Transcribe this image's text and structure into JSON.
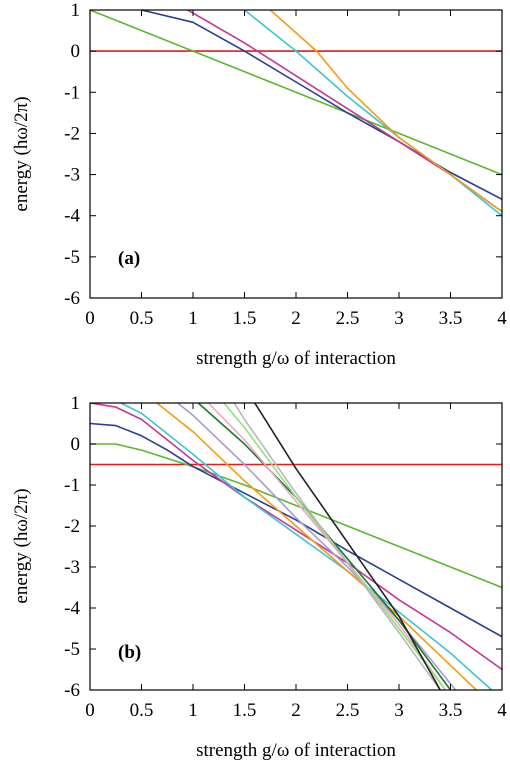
{
  "chart_data": [
    {
      "type": "line",
      "panel_label": "(a)",
      "xlabel": "strength g/ω of interaction",
      "ylabel": "energy  (hω/2π)",
      "xlim": [
        0,
        4
      ],
      "ylim": [
        -6,
        1
      ],
      "xticks": [
        "0",
        "0.5",
        "1",
        "1.5",
        "2",
        "2.5",
        "3",
        "3.5",
        "4"
      ],
      "yticks": [
        "1",
        "0",
        "-1",
        "-2",
        "-3",
        "-4",
        "-5",
        "-6"
      ],
      "grid": false,
      "series": [
        {
          "color": "#e41a1c",
          "x": [
            0,
            4
          ],
          "y": [
            0,
            0
          ]
        },
        {
          "color": "#5cb82e",
          "x": [
            0,
            1,
            2,
            3,
            4
          ],
          "y": [
            1,
            0,
            -1,
            -2,
            -3
          ]
        },
        {
          "color": "#2a3f8f",
          "x": [
            0.5,
            1,
            1.5,
            2,
            2.5,
            3,
            3.5,
            4
          ],
          "y": [
            1,
            0.7,
            0.0,
            -0.75,
            -1.5,
            -2.2,
            -2.95,
            -3.6
          ]
        },
        {
          "color": "#c2389a",
          "x": [
            0.95,
            1.5,
            2,
            2.5,
            3,
            3.5,
            4
          ],
          "y": [
            1,
            0.2,
            -0.6,
            -1.4,
            -2.2,
            -3.0,
            -3.9
          ]
        },
        {
          "color": "#3ec4d2",
          "x": [
            1.5,
            2,
            2.5,
            3,
            3.5,
            4
          ],
          "y": [
            1,
            0,
            -1.1,
            -2.1,
            -3.0,
            -4.0
          ]
        },
        {
          "color": "#f39c12",
          "x": [
            1.75,
            2.2,
            2.5,
            3,
            3.5,
            4
          ],
          "y": [
            1,
            0,
            -0.9,
            -2.1,
            -3.0,
            -3.9
          ]
        }
      ]
    },
    {
      "type": "line",
      "panel_label": "(b)",
      "xlabel": "strength g/ω of interaction",
      "ylabel": "energy  (hω/2π)",
      "xlim": [
        0,
        4
      ],
      "ylim": [
        -6,
        1
      ],
      "xticks": [
        "0",
        "0.5",
        "1",
        "1.5",
        "2",
        "2.5",
        "3",
        "3.5",
        "4"
      ],
      "yticks": [
        "1",
        "0",
        "-1",
        "-2",
        "-3",
        "-4",
        "-5",
        "-6"
      ],
      "grid": false,
      "series": [
        {
          "color": "#e41a1c",
          "x": [
            0,
            4
          ],
          "y": [
            -0.5,
            -0.5
          ]
        },
        {
          "color": "#5cb82e",
          "x": [
            0,
            0.25,
            0.5,
            0.75,
            1,
            1.5,
            2,
            2.5,
            3,
            3.5,
            4
          ],
          "y": [
            0,
            0,
            -0.15,
            -0.35,
            -0.55,
            -1.0,
            -1.5,
            -2.0,
            -2.5,
            -3.0,
            -3.5
          ]
        },
        {
          "color": "#2a3f8f",
          "x": [
            0,
            0.25,
            0.5,
            0.75,
            1,
            1.5,
            2,
            2.5,
            3,
            3.5,
            4
          ],
          "y": [
            0.5,
            0.45,
            0.2,
            -0.15,
            -0.55,
            -1.2,
            -1.85,
            -2.6,
            -3.3,
            -4.0,
            -4.7
          ]
        },
        {
          "color": "#c2389a",
          "x": [
            0,
            0.25,
            0.5,
            0.75,
            1,
            1.5,
            2,
            2.5,
            3,
            3.5,
            4
          ],
          "y": [
            1,
            0.9,
            0.6,
            0.1,
            -0.4,
            -1.3,
            -2.1,
            -2.9,
            -3.8,
            -4.6,
            -5.5
          ]
        },
        {
          "color": "#3ec4d2",
          "x": [
            0.3,
            0.5,
            0.75,
            1,
            1.5,
            2,
            2.5,
            3,
            3.5,
            3.9
          ],
          "y": [
            1,
            0.75,
            0.25,
            -0.25,
            -1.3,
            -2.2,
            -3.1,
            -4.1,
            -5.1,
            -6
          ]
        },
        {
          "color": "#f39c12",
          "x": [
            0.65,
            1,
            1.5,
            2,
            2.5,
            3,
            3.5,
            3.75
          ],
          "y": [
            1,
            0.3,
            -0.9,
            -2.0,
            -3.1,
            -4.2,
            -5.4,
            -6
          ]
        },
        {
          "color": "#a89bd0",
          "x": [
            0.85,
            1,
            1.5,
            2,
            2.5,
            3,
            3.55
          ],
          "y": [
            1,
            0.7,
            -0.5,
            -1.8,
            -3.0,
            -4.3,
            -6
          ]
        },
        {
          "color": "#1a7a2a",
          "x": [
            1.05,
            1.5,
            2,
            2.5,
            3,
            3.5
          ],
          "y": [
            1,
            0,
            -1.3,
            -2.8,
            -4.3,
            -6
          ]
        },
        {
          "color": "#f4a6c6",
          "x": [
            1.15,
            1.5,
            2,
            2.5,
            3,
            3.45
          ],
          "y": [
            1,
            0.1,
            -1.4,
            -2.9,
            -4.4,
            -6
          ]
        },
        {
          "color": "#8fe07a",
          "x": [
            1.3,
            1.5,
            2,
            2.5,
            3,
            3.45
          ],
          "y": [
            1,
            0.4,
            -1.3,
            -2.9,
            -4.5,
            -6
          ]
        },
        {
          "color": "#b8b8b8",
          "x": [
            1.4,
            1.5,
            2,
            2.5,
            3,
            3.4
          ],
          "y": [
            1,
            0.6,
            -1.2,
            -2.9,
            -4.6,
            -6
          ]
        },
        {
          "color": "#222222",
          "x": [
            1.6,
            2,
            2.5,
            3,
            3.4
          ],
          "y": [
            1,
            -0.6,
            -2.4,
            -4.2,
            -6
          ]
        }
      ]
    }
  ]
}
